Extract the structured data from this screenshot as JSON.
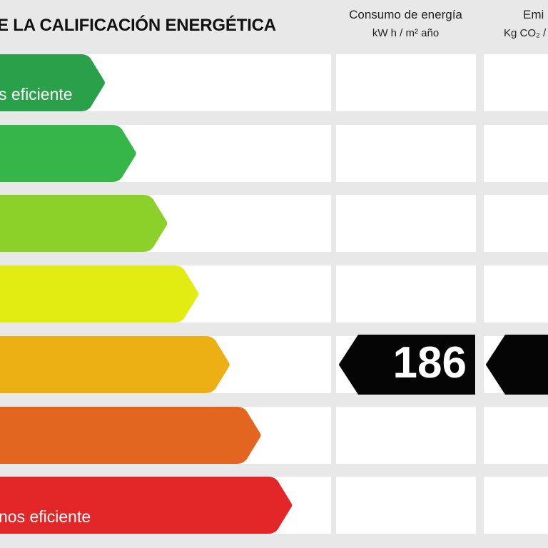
{
  "header": {
    "title": "E LA CALIFICACIÓN ENERGÉTICA",
    "consumption": {
      "line1": "Consumo de energía",
      "line2": "kW h / m² año"
    },
    "emissions": {
      "line1": "Emi",
      "line2": "Kg CO₂ /"
    }
  },
  "scale": {
    "top_label": "s eficiente",
    "bottom_label": "nos eficiente",
    "bars": [
      {
        "color": "#2aa04a"
      },
      {
        "color": "#36b648"
      },
      {
        "color": "#8cd12a"
      },
      {
        "color": "#e3ec12"
      },
      {
        "color": "#ecb014"
      },
      {
        "color": "#e26520"
      },
      {
        "color": "#e32729"
      }
    ]
  },
  "rating": {
    "row_index": 4,
    "consumption_value": "186"
  }
}
